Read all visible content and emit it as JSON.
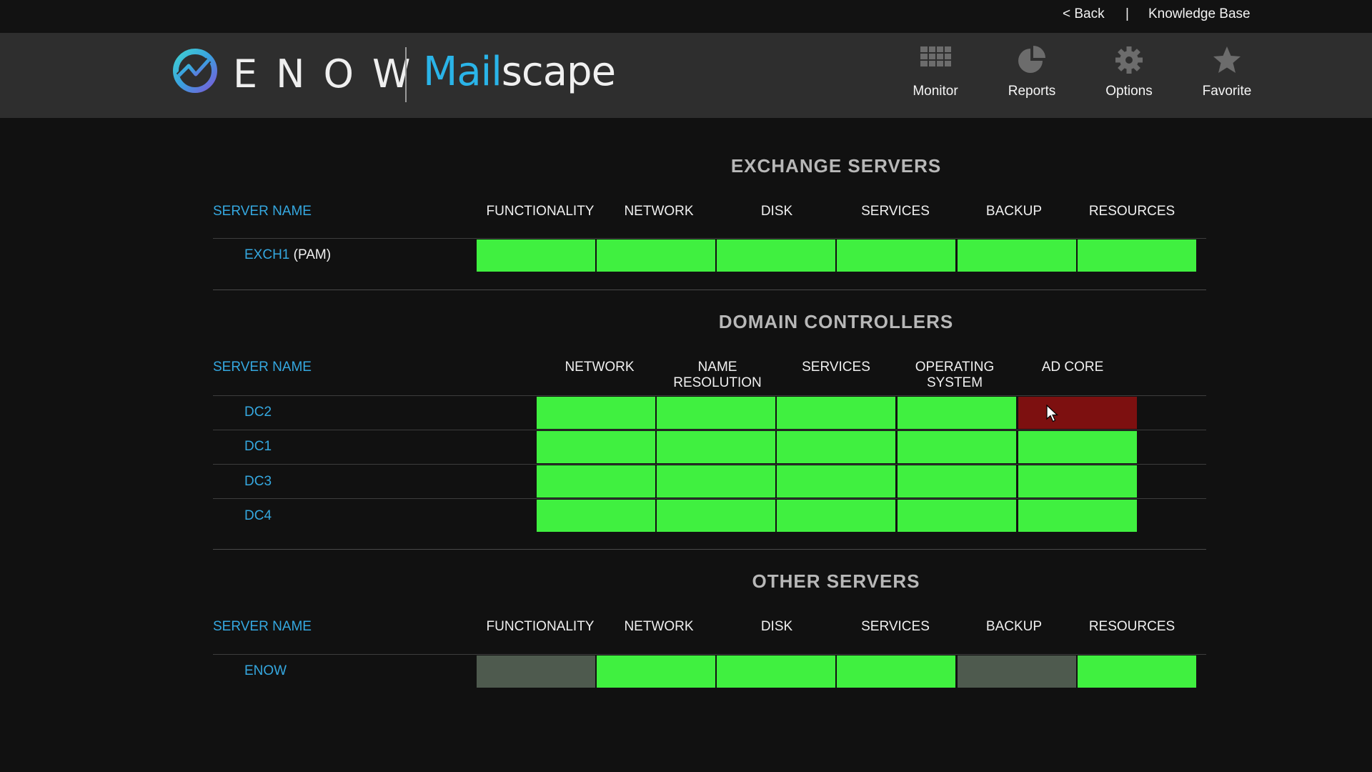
{
  "topbar": {
    "back_label": "< Back",
    "separator": "|",
    "knowledge_base_label": "Knowledge Base"
  },
  "brand": {
    "company": "ENOW",
    "product_part1": "Mail",
    "product_part2": "scape",
    "accent_color": "#2ab4e8"
  },
  "nav": [
    {
      "label": "Monitor",
      "icon": "grid-icon"
    },
    {
      "label": "Reports",
      "icon": "pie-chart-icon"
    },
    {
      "label": "Options",
      "icon": "gear-icon"
    },
    {
      "label": "Favorite",
      "icon": "star-icon"
    }
  ],
  "status_colors": {
    "ok": "#40f040",
    "error": "#7d1010",
    "not_applicable": "#4e5a4e"
  },
  "exchange": {
    "title": "EXCHANGE SERVERS",
    "name_header": "SERVER NAME",
    "columns": [
      "FUNCTIONALITY",
      "NETWORK",
      "DISK",
      "SERVICES",
      "BACKUP",
      "RESOURCES"
    ],
    "rows": [
      {
        "name": "EXCH1",
        "suffix": "(PAM)",
        "status": [
          "ok",
          "ok",
          "ok",
          "ok",
          "ok",
          "ok"
        ]
      }
    ]
  },
  "domain": {
    "title": "DOMAIN CONTROLLERS",
    "name_header": "SERVER NAME",
    "columns": [
      {
        "line1": "NETWORK",
        "line2": ""
      },
      {
        "line1": "NAME",
        "line2": "RESOLUTION"
      },
      {
        "line1": "SERVICES",
        "line2": ""
      },
      {
        "line1": "OPERATING",
        "line2": "SYSTEM"
      },
      {
        "line1": "AD CORE",
        "line2": ""
      }
    ],
    "rows": [
      {
        "name": "DC2",
        "status": [
          "ok",
          "ok",
          "ok",
          "ok",
          "error"
        ]
      },
      {
        "name": "DC1",
        "status": [
          "ok",
          "ok",
          "ok",
          "ok",
          "ok"
        ]
      },
      {
        "name": "DC3",
        "status": [
          "ok",
          "ok",
          "ok",
          "ok",
          "ok"
        ]
      },
      {
        "name": "DC4",
        "status": [
          "ok",
          "ok",
          "ok",
          "ok",
          "ok"
        ]
      }
    ]
  },
  "other": {
    "title": "OTHER SERVERS",
    "name_header": "SERVER NAME",
    "columns": [
      "FUNCTIONALITY",
      "NETWORK",
      "DISK",
      "SERVICES",
      "BACKUP",
      "RESOURCES"
    ],
    "rows": [
      {
        "name": "ENOW",
        "status": [
          "not_applicable",
          "ok",
          "ok",
          "ok",
          "not_applicable",
          "ok"
        ]
      }
    ]
  }
}
